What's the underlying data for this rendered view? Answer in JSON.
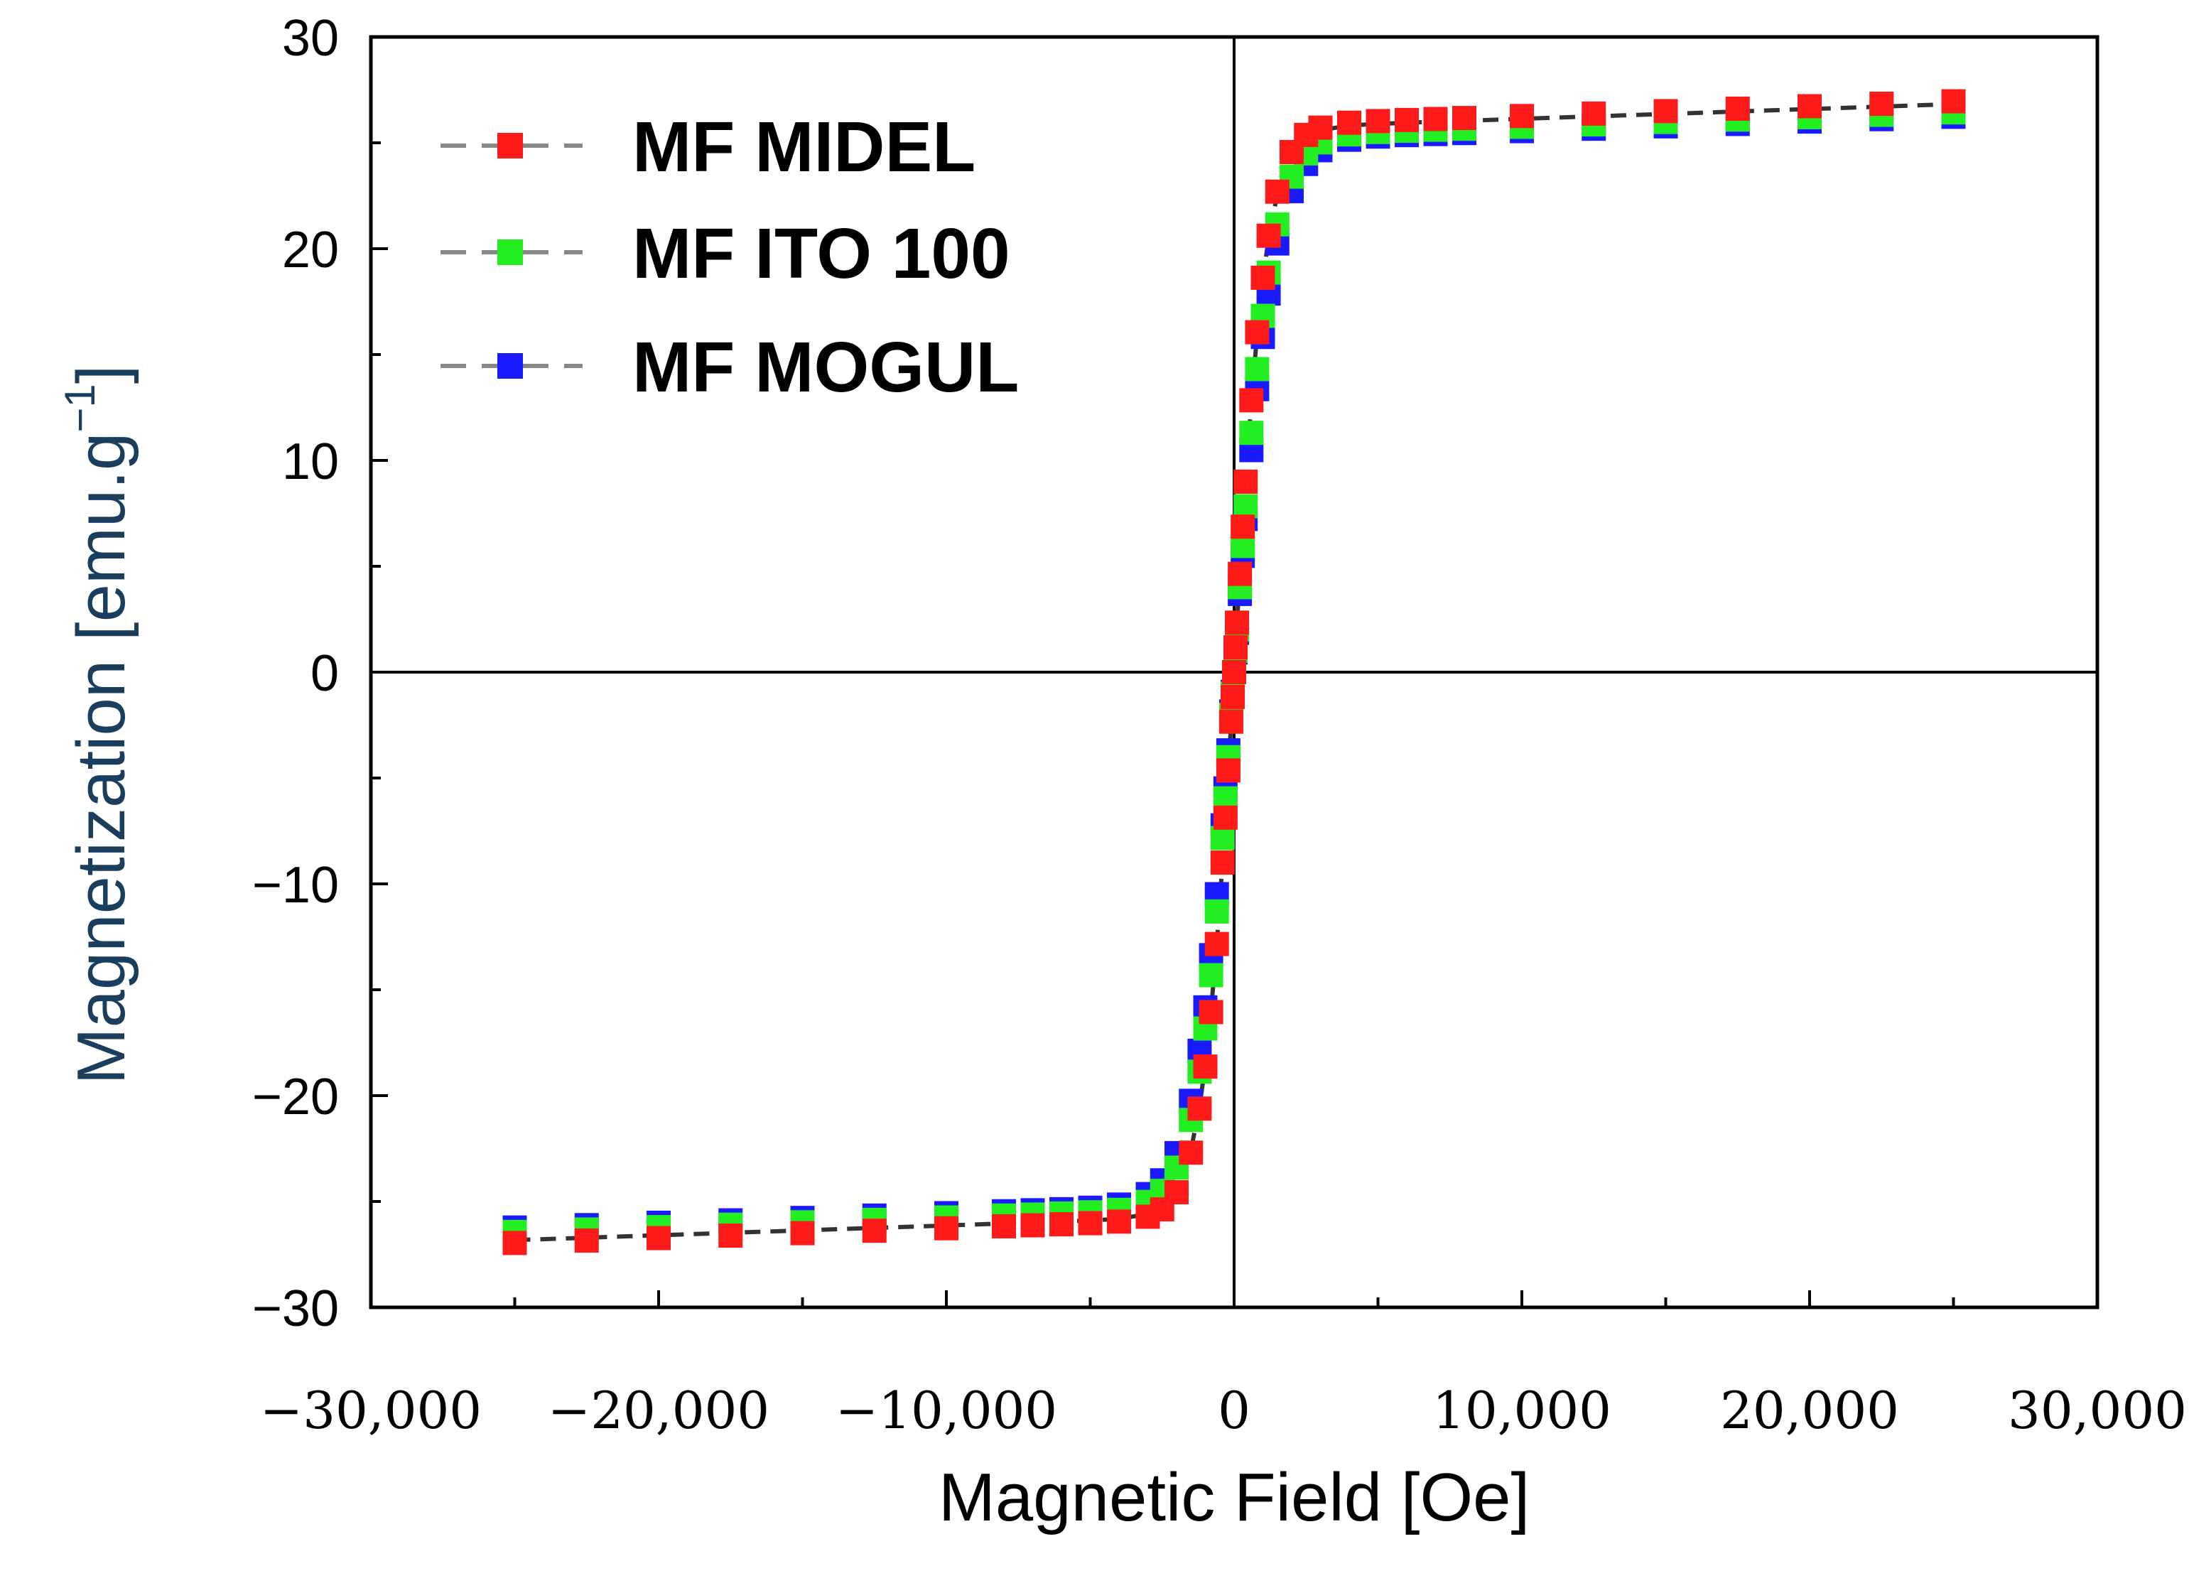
{
  "chart_data": {
    "type": "scatter",
    "title": "",
    "xlabel": "Magnetic Field [Oe]",
    "ylabel": "Magnetization [emu.g",
    "ylabel_superscript": "−1",
    "ylabel_close": "]",
    "xlim": [
      -30000,
      30000
    ],
    "ylim": [
      -30,
      30
    ],
    "x_ticks": [
      -30000,
      -20000,
      -10000,
      0,
      10000,
      20000,
      30000
    ],
    "x_tick_labels": [
      "−30,000",
      "−20,000",
      "−10,000",
      "0",
      "10,000",
      "20,000",
      "30,000"
    ],
    "y_ticks": [
      -30,
      -20,
      -10,
      0,
      10,
      20,
      30
    ],
    "y_tick_labels": [
      "−30",
      "−20",
      "−10",
      "0",
      "10",
      "20",
      "30"
    ],
    "grid": false,
    "legend_position": "top-left",
    "series": [
      {
        "name": "MF MIDEL",
        "color": "#ff1a1a",
        "ms": 25.8,
        "hk": 1100
      },
      {
        "name": "MF ITO 100",
        "color": "#22ee22",
        "ms": 25.3,
        "hk": 1250
      },
      {
        "name": "MF MOGUL",
        "color": "#1a1aff",
        "ms": 25.1,
        "hk": 1350
      }
    ],
    "x": [
      -25000,
      -22500,
      -20000,
      -17500,
      -15000,
      -12500,
      -10000,
      -8000,
      -7000,
      -6000,
      -5000,
      -4000,
      -3000,
      -2500,
      -2000,
      -1500,
      -1200,
      -1000,
      -800,
      -600,
      -400,
      -300,
      -200,
      -100,
      -50,
      0,
      50,
      100,
      200,
      300,
      400,
      600,
      800,
      1000,
      1200,
      1500,
      2000,
      2500,
      3000,
      4000,
      5000,
      6000,
      7000,
      8000,
      10000,
      12500,
      15000,
      17500,
      20000,
      22500,
      25000
    ]
  }
}
